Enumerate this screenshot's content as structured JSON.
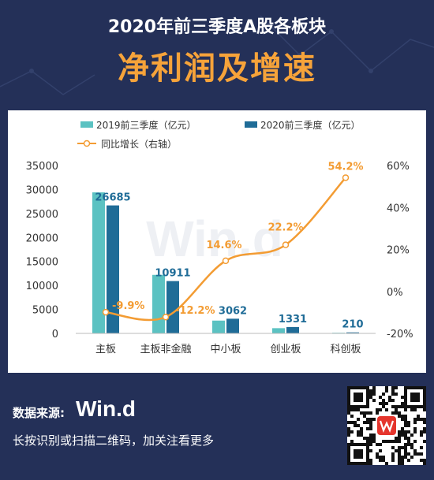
{
  "header": {
    "title": "2020年前三季度A股各板块",
    "subtitle": "净利润及增速"
  },
  "watermark": "Win.d",
  "legend": {
    "s2019": "2019前三季度（亿元）",
    "s2020": "2020前三季度（亿元）",
    "growth": "同比增长（右轴）"
  },
  "chart_data": {
    "type": "bar",
    "categories": [
      "主板",
      "主板非金融",
      "中小板",
      "创业板",
      "科创板"
    ],
    "series": [
      {
        "name": "2019前三季度（亿元）",
        "values": [
          29400,
          12200,
          2670,
          1090,
          136
        ],
        "color": "#5bc2c2"
      },
      {
        "name": "2020前三季度（亿元）",
        "values": [
          26685,
          10911,
          3062,
          1331,
          210
        ],
        "color": "#1f6c97",
        "labels": [
          "26685",
          "10911",
          "3062",
          "1331",
          "210"
        ]
      },
      {
        "name": "同比增长（右轴）",
        "type": "line",
        "axis": "right",
        "values": [
          -9.9,
          -12.2,
          14.6,
          22.2,
          54.2
        ],
        "labels": [
          "-9.9%",
          "-12.2%",
          "14.6%",
          "22.2%",
          "54.2%"
        ],
        "color": "#f39c33"
      }
    ],
    "y_left": {
      "min": 0,
      "max": 35000,
      "ticks": [
        "0",
        "5000",
        "10000",
        "15000",
        "20000",
        "25000",
        "30000",
        "35000"
      ]
    },
    "y_right": {
      "min": -20,
      "max": 60,
      "ticks": [
        "-20%",
        "0%",
        "20%",
        "40%",
        "60%"
      ]
    }
  },
  "footer": {
    "source_label": "数据来源:",
    "logo_text": "Win.d",
    "note": "长按识别或扫描二维码，加关注看更多"
  }
}
